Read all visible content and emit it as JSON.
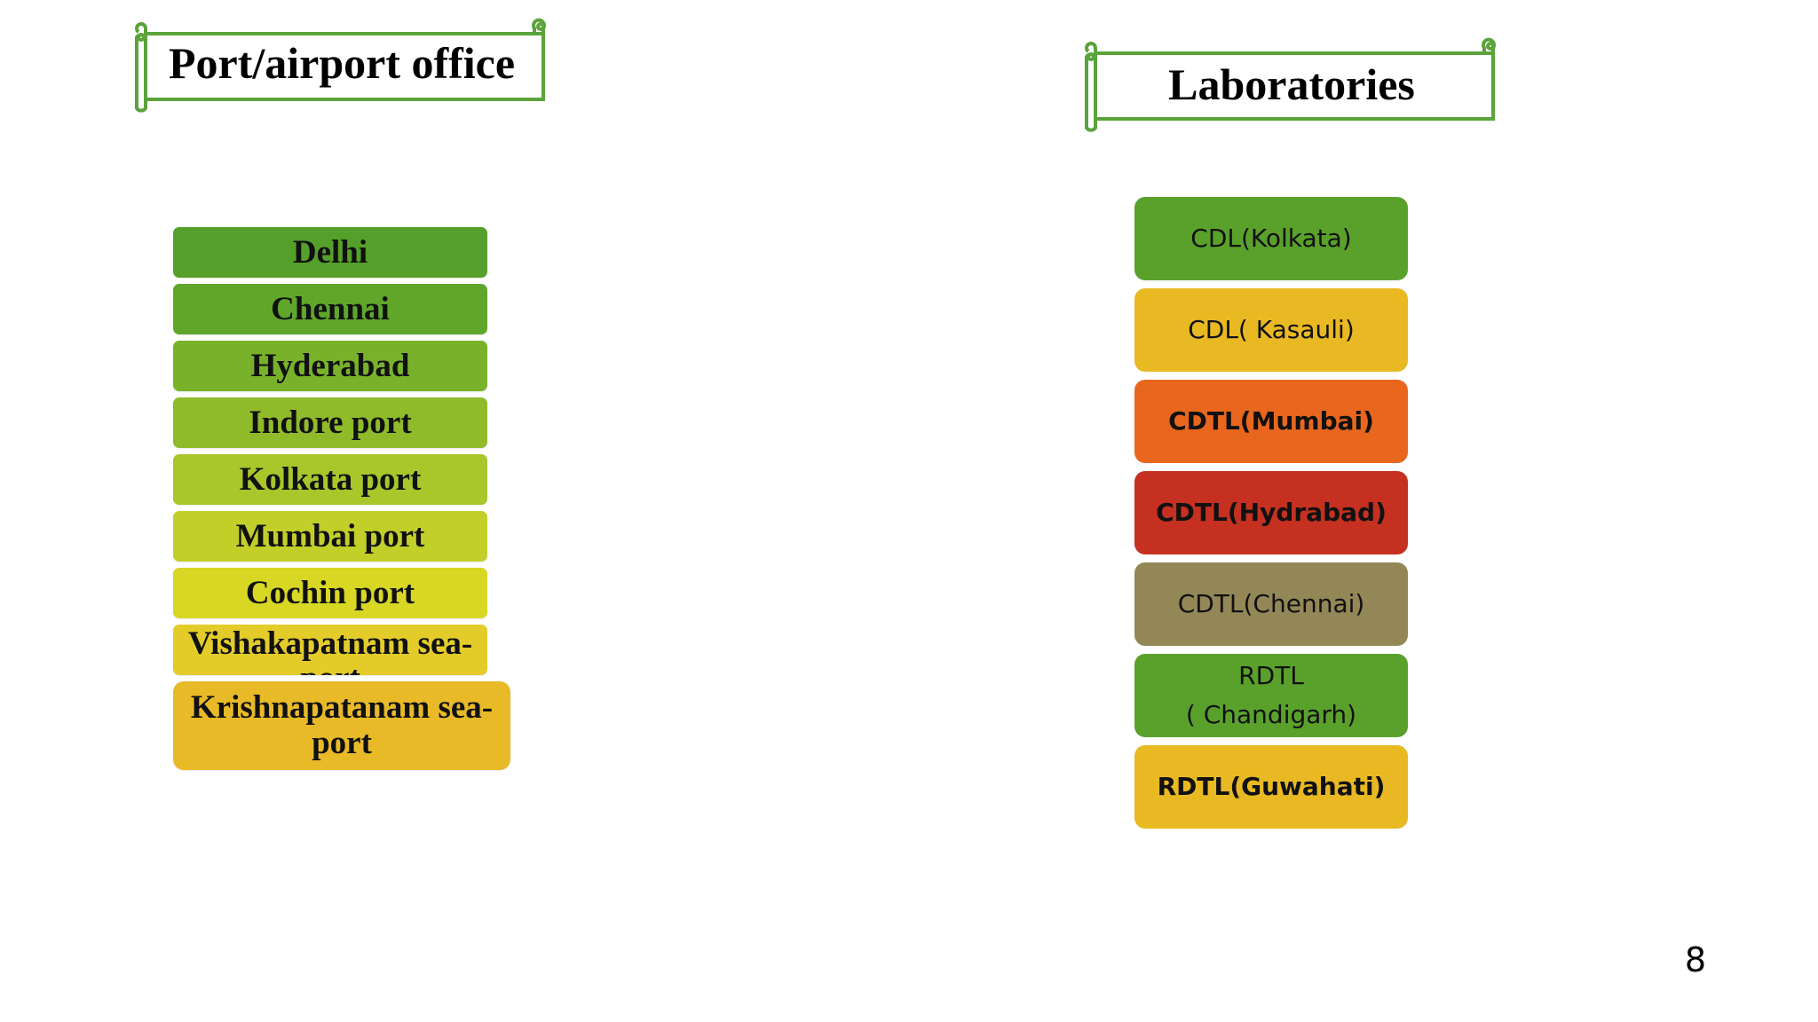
{
  "left_section": {
    "title": "Port/airport office",
    "items": [
      {
        "label": "Delhi",
        "color": "#55A02A"
      },
      {
        "label": "Chennai",
        "color": "#5FA62A"
      },
      {
        "label": "Hyderabad",
        "color": "#78B22A"
      },
      {
        "label": "Indore port",
        "color": "#8FBB2A"
      },
      {
        "label": "Kolkata port",
        "color": "#A9C62A"
      },
      {
        "label": "Mumbai port",
        "color": "#C1CF28"
      },
      {
        "label": "Cochin port",
        "color": "#D8D724"
      },
      {
        "label": "Vishakapatnam sea-port",
        "color": "#E3CC2A"
      },
      {
        "label": "Krishnapatanam sea-port",
        "color": "#E8BA28"
      }
    ]
  },
  "right_section": {
    "title": "Laboratories",
    "items": [
      {
        "label": "CDL(Kolkata)",
        "color": "#5AA12C"
      },
      {
        "label": "CDL( Kasauli)",
        "color": "#E9B923"
      },
      {
        "label": "CDTL(Mumbai)",
        "color": "#E8661E"
      },
      {
        "label": "CDTL(Hydrabad)",
        "color": "#C53020"
      },
      {
        "label": "CDTL(Chennai)",
        "color": "#938757"
      },
      {
        "label": "RDTL",
        "label_line2": "( Chandigarh)",
        "color": "#5AA12C"
      },
      {
        "label": "RDTL(Guwahati)",
        "color": "#E9B923"
      }
    ]
  },
  "banner_color": "#5BA33A",
  "page_number": "8"
}
